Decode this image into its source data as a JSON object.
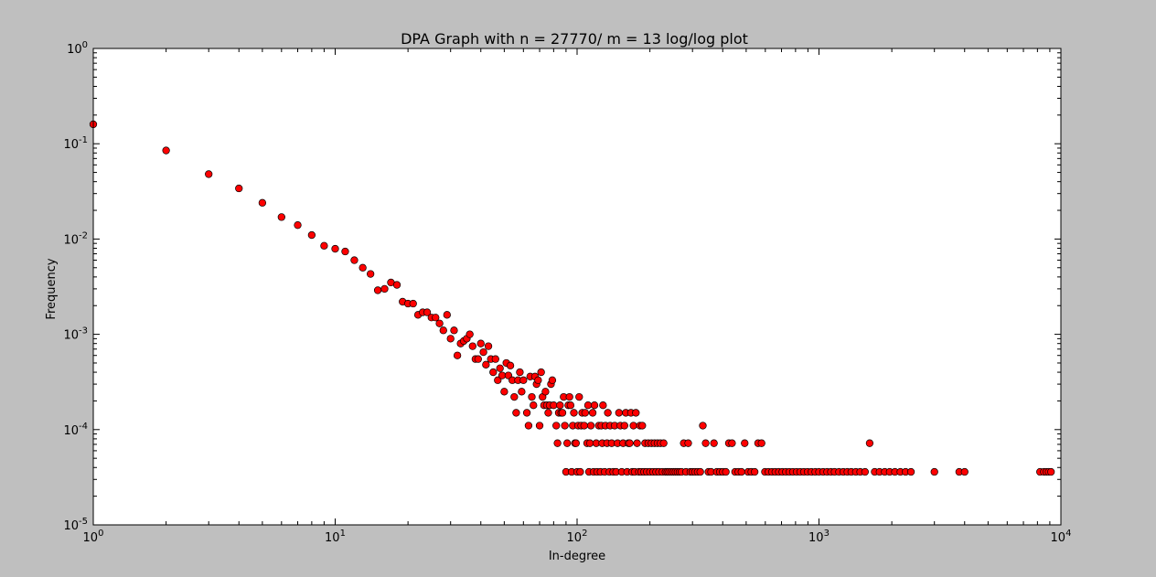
{
  "chart_data": {
    "type": "scatter",
    "title": "DPA Graph with n = 27770/ m = 13 log/log plot",
    "xlabel": "In-degree",
    "ylabel": "Frequency",
    "xscale": "log",
    "yscale": "log",
    "xlim": [
      1,
      10000
    ],
    "ylim": [
      1e-05,
      1
    ],
    "grid": false,
    "marker_color": "#ff0000",
    "marker_edge_color": "#000000",
    "background_color": "#bfbfbf",
    "plot_area_color": "#ffffff",
    "x_ticks": [
      {
        "value": 1,
        "base": "10",
        "exp": "0"
      },
      {
        "value": 10,
        "base": "10",
        "exp": "1"
      },
      {
        "value": 100,
        "base": "10",
        "exp": "2"
      },
      {
        "value": 1000,
        "base": "10",
        "exp": "3"
      },
      {
        "value": 10000,
        "base": "10",
        "exp": "4"
      }
    ],
    "y_ticks": [
      {
        "value": 1,
        "base": "10",
        "exp": "0"
      },
      {
        "value": 0.1,
        "base": "10",
        "exp": "-1"
      },
      {
        "value": 0.01,
        "base": "10",
        "exp": "-2"
      },
      {
        "value": 0.001,
        "base": "10",
        "exp": "-3"
      },
      {
        "value": 0.0001,
        "base": "10",
        "exp": "-4"
      },
      {
        "value": 1e-05,
        "base": "10",
        "exp": "-5"
      }
    ],
    "points": [
      [
        1,
        0.16
      ],
      [
        2,
        0.085
      ],
      [
        3,
        0.048
      ],
      [
        4,
        0.034
      ],
      [
        5,
        0.024
      ],
      [
        6,
        0.017
      ],
      [
        7,
        0.014
      ],
      [
        8,
        0.011
      ],
      [
        9,
        0.0085
      ],
      [
        10,
        0.0079
      ],
      [
        11,
        0.0074
      ],
      [
        12,
        0.006
      ],
      [
        13,
        0.005
      ],
      [
        14,
        0.0043
      ],
      [
        15,
        0.0029
      ],
      [
        16,
        0.003
      ],
      [
        17,
        0.0035
      ],
      [
        18,
        0.0033
      ],
      [
        19,
        0.0022
      ],
      [
        20,
        0.0021
      ],
      [
        21,
        0.0021
      ],
      [
        22,
        0.0016
      ],
      [
        23,
        0.0017
      ],
      [
        24,
        0.0017
      ],
      [
        25,
        0.0015
      ],
      [
        26,
        0.0015
      ],
      [
        27,
        0.0013
      ],
      [
        28,
        0.0011
      ],
      [
        29,
        0.0016
      ],
      [
        30,
        0.0009
      ],
      [
        31,
        0.0011
      ],
      [
        32,
        0.0006
      ],
      [
        33,
        0.0008
      ],
      [
        34,
        0.00085
      ],
      [
        35,
        0.0009
      ],
      [
        36,
        0.001
      ],
      [
        37,
        0.00075
      ],
      [
        38,
        0.00055
      ],
      [
        39,
        0.00055
      ],
      [
        40,
        0.0008
      ],
      [
        41,
        0.00065
      ],
      [
        42,
        0.00048
      ],
      [
        43,
        0.00075
      ],
      [
        44,
        0.00055
      ],
      [
        45,
        0.0004
      ],
      [
        46,
        0.00055
      ],
      [
        47,
        0.00033
      ],
      [
        48,
        0.00044
      ],
      [
        49,
        0.00037
      ],
      [
        50,
        0.00025
      ],
      [
        51,
        0.0005
      ],
      [
        52,
        0.00037
      ],
      [
        53,
        0.00047
      ],
      [
        54,
        0.00033
      ],
      [
        55,
        0.00022
      ],
      [
        56,
        0.00015
      ],
      [
        57,
        0.00033
      ],
      [
        58,
        0.0004
      ],
      [
        59,
        0.00025
      ],
      [
        60,
        0.00033
      ],
      [
        62,
        0.00015
      ],
      [
        63,
        0.00011
      ],
      [
        64,
        0.00036
      ],
      [
        65,
        0.00022
      ],
      [
        66,
        0.00018
      ],
      [
        67,
        0.00036
      ],
      [
        68,
        0.0003
      ],
      [
        69,
        0.00033
      ],
      [
        70,
        0.00011
      ],
      [
        71,
        0.0004
      ],
      [
        72,
        0.00022
      ],
      [
        73,
        0.00018
      ],
      [
        74,
        0.00025
      ],
      [
        75,
        0.00018
      ],
      [
        76,
        0.00015
      ],
      [
        77,
        0.00018
      ],
      [
        78,
        0.0003
      ],
      [
        79,
        0.00033
      ],
      [
        80,
        0.00018
      ],
      [
        82,
        0.00011
      ],
      [
        83,
        7.2e-05
      ],
      [
        84,
        0.00015
      ],
      [
        85,
        0.00018
      ],
      [
        86,
        0.00015
      ],
      [
        87,
        0.00015
      ],
      [
        88,
        0.00022
      ],
      [
        89,
        0.00011
      ],
      [
        90,
        3.6e-05
      ],
      [
        91,
        7.2e-05
      ],
      [
        92,
        0.00018
      ],
      [
        93,
        0.00022
      ],
      [
        94,
        0.00018
      ],
      [
        95,
        3.6e-05
      ],
      [
        96,
        0.00011
      ],
      [
        97,
        0.00015
      ],
      [
        98,
        7.2e-05
      ],
      [
        99,
        7.2e-05
      ],
      [
        100,
        3.6e-05
      ],
      [
        101,
        0.00011
      ],
      [
        102,
        0.00022
      ],
      [
        103,
        3.6e-05
      ],
      [
        104,
        0.00011
      ],
      [
        105,
        0.00015
      ],
      [
        107,
        0.00011
      ],
      [
        108,
        0.00015
      ],
      [
        110,
        7.2e-05
      ],
      [
        111,
        0.00018
      ],
      [
        112,
        3.6e-05
      ],
      [
        113,
        7.2e-05
      ],
      [
        114,
        0.00011
      ],
      [
        116,
        0.00015
      ],
      [
        117,
        3.6e-05
      ],
      [
        118,
        0.00018
      ],
      [
        120,
        7.2e-05
      ],
      [
        121,
        3.6e-05
      ],
      [
        123,
        0.00011
      ],
      [
        125,
        3.6e-05
      ],
      [
        126,
        0.00011
      ],
      [
        127,
        7.2e-05
      ],
      [
        128,
        0.00018
      ],
      [
        130,
        3.6e-05
      ],
      [
        131,
        0.00011
      ],
      [
        133,
        7.2e-05
      ],
      [
        134,
        0.00015
      ],
      [
        136,
        3.6e-05
      ],
      [
        137,
        0.00011
      ],
      [
        139,
        7.2e-05
      ],
      [
        141,
        3.6e-05
      ],
      [
        143,
        0.00011
      ],
      [
        145,
        3.6e-05
      ],
      [
        147,
        7.2e-05
      ],
      [
        149,
        0.00015
      ],
      [
        151,
        0.00011
      ],
      [
        153,
        3.6e-05
      ],
      [
        155,
        7.2e-05
      ],
      [
        157,
        0.00011
      ],
      [
        159,
        0.00015
      ],
      [
        161,
        3.6e-05
      ],
      [
        163,
        7.2e-05
      ],
      [
        165,
        7.2e-05
      ],
      [
        167,
        0.00015
      ],
      [
        169,
        3.6e-05
      ],
      [
        171,
        0.00011
      ],
      [
        173,
        3.6e-05
      ],
      [
        175,
        0.00015
      ],
      [
        177,
        7.2e-05
      ],
      [
        180,
        3.6e-05
      ],
      [
        182,
        0.00011
      ],
      [
        184,
        3.6e-05
      ],
      [
        186,
        0.00011
      ],
      [
        189,
        3.6e-05
      ],
      [
        191,
        7.2e-05
      ],
      [
        194,
        3.6e-05
      ],
      [
        197,
        7.2e-05
      ],
      [
        200,
        3.6e-05
      ],
      [
        203,
        7.2e-05
      ],
      [
        206,
        3.6e-05
      ],
      [
        209,
        7.2e-05
      ],
      [
        212,
        3.6e-05
      ],
      [
        215,
        7.2e-05
      ],
      [
        218,
        3.6e-05
      ],
      [
        221,
        7.2e-05
      ],
      [
        225,
        3.6e-05
      ],
      [
        228,
        7.2e-05
      ],
      [
        232,
        3.6e-05
      ],
      [
        236,
        3.6e-05
      ],
      [
        240,
        3.6e-05
      ],
      [
        245,
        3.6e-05
      ],
      [
        250,
        3.6e-05
      ],
      [
        255,
        3.6e-05
      ],
      [
        260,
        3.6e-05
      ],
      [
        265,
        3.6e-05
      ],
      [
        270,
        3.6e-05
      ],
      [
        276,
        7.2e-05
      ],
      [
        282,
        3.6e-05
      ],
      [
        288,
        7.2e-05
      ],
      [
        294,
        3.6e-05
      ],
      [
        300,
        3.6e-05
      ],
      [
        307,
        3.6e-05
      ],
      [
        315,
        3.6e-05
      ],
      [
        323,
        3.6e-05
      ],
      [
        331,
        0.00011
      ],
      [
        340,
        7.2e-05
      ],
      [
        349,
        3.6e-05
      ],
      [
        358,
        3.6e-05
      ],
      [
        368,
        7.2e-05
      ],
      [
        378,
        3.6e-05
      ],
      [
        389,
        3.6e-05
      ],
      [
        400,
        3.6e-05
      ],
      [
        412,
        3.6e-05
      ],
      [
        424,
        7.2e-05
      ],
      [
        437,
        7.2e-05
      ],
      [
        450,
        3.6e-05
      ],
      [
        464,
        3.6e-05
      ],
      [
        478,
        3.6e-05
      ],
      [
        493,
        7.2e-05
      ],
      [
        509,
        3.6e-05
      ],
      [
        525,
        3.6e-05
      ],
      [
        542,
        3.6e-05
      ],
      [
        560,
        7.2e-05
      ],
      [
        579,
        7.2e-05
      ],
      [
        598,
        3.6e-05
      ],
      [
        618,
        3.6e-05
      ],
      [
        639,
        3.6e-05
      ],
      [
        660,
        3.6e-05
      ],
      [
        682,
        3.6e-05
      ],
      [
        705,
        3.6e-05
      ],
      [
        729,
        3.6e-05
      ],
      [
        754,
        3.6e-05
      ],
      [
        780,
        3.6e-05
      ],
      [
        808,
        3.6e-05
      ],
      [
        836,
        3.6e-05
      ],
      [
        866,
        3.6e-05
      ],
      [
        897,
        3.6e-05
      ],
      [
        930,
        3.6e-05
      ],
      [
        965,
        3.6e-05
      ],
      [
        1000,
        3.6e-05
      ],
      [
        1040,
        3.6e-05
      ],
      [
        1080,
        3.6e-05
      ],
      [
        1120,
        3.6e-05
      ],
      [
        1160,
        3.6e-05
      ],
      [
        1210,
        3.6e-05
      ],
      [
        1260,
        3.6e-05
      ],
      [
        1310,
        3.6e-05
      ],
      [
        1360,
        3.6e-05
      ],
      [
        1420,
        3.6e-05
      ],
      [
        1480,
        3.6e-05
      ],
      [
        1550,
        3.6e-05
      ],
      [
        1620,
        7.2e-05
      ],
      [
        1700,
        3.6e-05
      ],
      [
        1780,
        3.6e-05
      ],
      [
        1870,
        3.6e-05
      ],
      [
        1960,
        3.6e-05
      ],
      [
        2060,
        3.6e-05
      ],
      [
        2170,
        3.6e-05
      ],
      [
        2280,
        3.6e-05
      ],
      [
        2400,
        3.6e-05
      ],
      [
        3000,
        3.6e-05
      ],
      [
        3800,
        3.6e-05
      ],
      [
        4000,
        3.6e-05
      ],
      [
        8200,
        3.6e-05
      ],
      [
        8500,
        3.6e-05
      ],
      [
        8700,
        3.6e-05
      ],
      [
        8900,
        3.6e-05
      ],
      [
        9100,
        3.6e-05
      ]
    ]
  }
}
